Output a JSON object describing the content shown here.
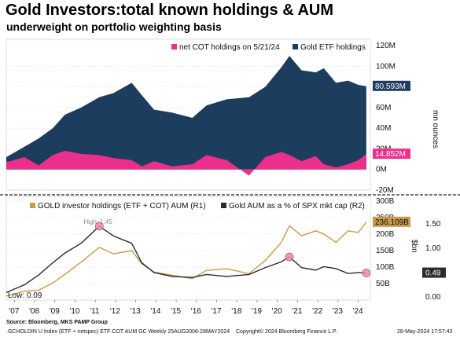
{
  "title": "Gold Investors:total known holdings & AUM",
  "subtitle": "underweight on portfolio weighting basis",
  "source": "Source: Bloomberg, MKS PAMP Group",
  "footer_left": ".GCHOLDIN U Index (ETF + netspec) ETF COT AUM GC  Weekly 25AUG2006-28MAY2024",
  "footer_center": "Copyright© 2024 Bloomberg Finance L.P.",
  "footer_right": "28-May-2024 17:57:43",
  "colors": {
    "etf": "#1c3d5e",
    "cot": "#ec2f8a",
    "aum": "#c79a4a",
    "pct": "#2b2b2b",
    "marker": "#e88d9d"
  },
  "chart_data": [
    {
      "type": "area",
      "legend": [
        "net COT holdings on 5/21/24",
        "Gold ETF holdings"
      ],
      "ylabel": "mn ounces",
      "ylim": [
        -20,
        120
      ],
      "y_ticks": [
        "120M",
        "100M",
        "80M",
        "60M",
        "40M",
        "20M",
        "0M",
        "-20M"
      ],
      "x": [
        2006.6,
        2007.5,
        2008.2,
        2008.9,
        2009.5,
        2010.3,
        2011.2,
        2011.9,
        2012.8,
        2013.3,
        2013.9,
        2014.8,
        2015.8,
        2016.5,
        2017.5,
        2018.6,
        2019.4,
        2020.2,
        2020.6,
        2021.2,
        2021.9,
        2022.3,
        2022.9,
        2023.5,
        2024.0,
        2024.4
      ],
      "series": [
        {
          "name": "Gold ETF holdings",
          "values": [
            12,
            22,
            30,
            40,
            53,
            60,
            70,
            74,
            84,
            72,
            58,
            55,
            50,
            62,
            68,
            70,
            80,
            99,
            110,
            96,
            94,
            98,
            84,
            86,
            82,
            80.593
          ]
        },
        {
          "name": "net COT holdings on 5/21/24",
          "values": [
            7,
            12,
            4,
            14,
            18,
            15,
            14,
            11,
            9,
            3,
            8,
            3,
            5,
            14,
            9,
            -6,
            12,
            17,
            14,
            8,
            13,
            5,
            2,
            5,
            9,
            14.852
          ]
        }
      ],
      "last_labels": {
        "etf": "80.593M",
        "cot": "14.852M"
      }
    },
    {
      "type": "line",
      "legend": [
        "GOLD investor holdings (ETF + COT) AUM (R1)",
        "Gold AUM as a % of SPX mkt cap (R2)"
      ],
      "ylabel": "$bn",
      "x_ticks": [
        "'07",
        "'08",
        "'09",
        "'10",
        "'11",
        "'12",
        "'13",
        "'14",
        "'15",
        "'16",
        "'17",
        "'18",
        "'19",
        "'20",
        "'21",
        "'22",
        "'23",
        "'24"
      ],
      "y1_ticks": [
        "300B",
        "250B",
        "200B",
        "150B",
        "100B",
        "50B"
      ],
      "y1lim": [
        0,
        300
      ],
      "y2_ticks": [
        "1.50",
        "1.00",
        "0.50",
        "0.00"
      ],
      "y2lim": [
        0,
        1.9
      ],
      "x": [
        2006.6,
        2007.5,
        2008.2,
        2008.9,
        2009.5,
        2010.3,
        2011.2,
        2011.9,
        2012.8,
        2013.3,
        2013.9,
        2014.8,
        2015.8,
        2016.5,
        2017.5,
        2018.6,
        2019.4,
        2020.2,
        2020.6,
        2021.2,
        2021.9,
        2022.3,
        2022.9,
        2023.5,
        2024.0,
        2024.4
      ],
      "series": [
        {
          "name": "GOLD investor holdings (ETF + COT) AUM (R1)",
          "axis": "R1",
          "values": [
            12,
            27,
            30,
            52,
            78,
            115,
            160,
            140,
            150,
            110,
            85,
            75,
            65,
            90,
            95,
            80,
            120,
            175,
            225,
            195,
            210,
            200,
            175,
            210,
            205,
            236.109
          ]
        },
        {
          "name": "Gold AUM as a % of SPX mkt cap (R2)",
          "axis": "R2",
          "values": [
            0.09,
            0.25,
            0.45,
            0.7,
            0.9,
            1.1,
            1.45,
            1.25,
            1.1,
            0.7,
            0.5,
            0.42,
            0.4,
            0.46,
            0.42,
            0.46,
            0.6,
            0.72,
            0.82,
            0.6,
            0.55,
            0.62,
            0.58,
            0.48,
            0.5,
            0.49
          ]
        }
      ],
      "last_labels": {
        "aum": "236.109B",
        "pct": "0.49"
      },
      "annotations": {
        "high": "High: 1.45",
        "low": "Low: 0.09"
      }
    }
  ]
}
